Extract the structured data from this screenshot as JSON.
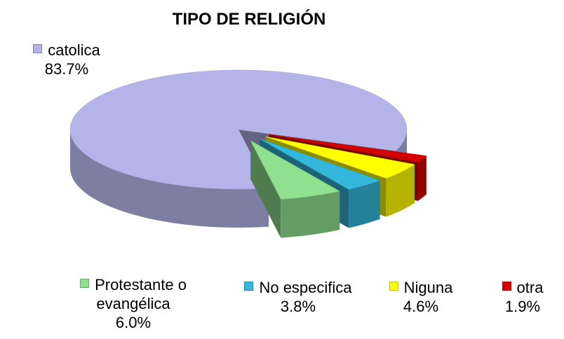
{
  "chart_data": {
    "type": "pie",
    "title": "TIPO DE RELIGIÓN",
    "categories": [
      "catolica",
      "Protestante o evangélica",
      "No especifica",
      "Niguna",
      "otra"
    ],
    "values": [
      83.7,
      6.0,
      3.8,
      4.6,
      1.9
    ],
    "value_labels": [
      "83.7%",
      "6.0%",
      "3.8%",
      "4.6%",
      "1.9%"
    ],
    "colors": [
      "#b4b4e8",
      "#8fe08f",
      "#33b8dc",
      "#ffff00",
      "#d40000"
    ]
  }
}
